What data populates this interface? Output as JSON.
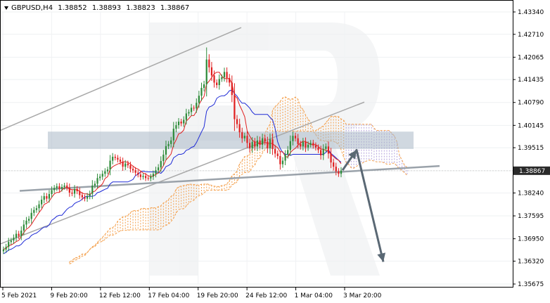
{
  "header": {
    "symbol": "GBPUSD,H4",
    "open": "1.38852",
    "high": "1.38893",
    "low": "1.38823",
    "close": "1.38867"
  },
  "colors": {
    "bull_candle": "#2e8b3a",
    "bear_candle": "#e02020",
    "tenkan": "#e02020",
    "kijun": "#1f2bd6",
    "cloud": "#f4a04c",
    "cloud_future": "#b4a2dc",
    "channel": "#a8a8a8",
    "support": "#9aa2aa",
    "resistance_zone": "#a9b8c6",
    "forecast_arrow": "#5a6874",
    "price_badge": "#2a2a2a"
  },
  "chart_data": {
    "type": "candlestick",
    "indicators": [
      "Ichimoku Kinko Hyo"
    ],
    "ylim": [
      1.35675,
      1.4334
    ],
    "y_ticks": [
      "1.43340",
      "1.42710",
      "1.42065",
      "1.41435",
      "1.40790",
      "1.40145",
      "1.39515",
      "1.38867",
      "1.38240",
      "1.37595",
      "1.36950",
      "1.36320",
      "1.35675"
    ],
    "current_price": "1.38867",
    "x_ticks": [
      "5 Feb 2021",
      "9 Feb 20:00",
      "12 Feb 12:00",
      "17 Feb 04:00",
      "19 Feb 20:00",
      "24 Feb 12:00",
      "1 Mar 04:00",
      "3 Mar 20:00"
    ],
    "candles_close": [
      1.3665,
      1.3672,
      1.3686,
      1.369,
      1.3698,
      1.3709,
      1.3703,
      1.3718,
      1.3735,
      1.3746,
      1.3751,
      1.3768,
      1.3776,
      1.3781,
      1.3792,
      1.3805,
      1.3815,
      1.3808,
      1.3821,
      1.3832,
      1.3838,
      1.3843,
      1.3836,
      1.3841,
      1.3845,
      1.3839,
      1.3825,
      1.3822,
      1.3835,
      1.3829,
      1.3818,
      1.3812,
      1.3808,
      1.3815,
      1.3822,
      1.3845,
      1.385,
      1.3866,
      1.387,
      1.3878,
      1.3885,
      1.389,
      1.3915,
      1.3926,
      1.3923,
      1.3918,
      1.3912,
      1.3898,
      1.3907,
      1.3902,
      1.3892,
      1.3888,
      1.3881,
      1.3876,
      1.3869,
      1.3872,
      1.3866,
      1.3865,
      1.387,
      1.3878,
      1.3888,
      1.3896,
      1.3914,
      1.3932,
      1.3956,
      1.3962,
      1.3972,
      1.4005,
      1.4015,
      1.4025,
      1.402,
      1.403,
      1.4048,
      1.4052,
      1.4064,
      1.4062,
      1.4078,
      1.4098,
      1.412,
      1.413,
      1.42,
      1.4178,
      1.4155,
      1.4135,
      1.4128,
      1.4145,
      1.415,
      1.4165,
      1.4148,
      1.4135,
      1.41,
      1.4032,
      1.4018,
      1.3995,
      1.3978,
      1.3985,
      1.3965,
      1.395,
      1.3968,
      1.3955,
      1.3972,
      1.396,
      1.3978,
      1.3969,
      1.395,
      1.3975,
      1.3948,
      1.3935,
      1.3928,
      1.3905,
      1.3915,
      1.3932,
      1.3945,
      1.397,
      1.3985,
      1.3978,
      1.3962,
      1.3955,
      1.3968,
      1.3952,
      1.396,
      1.3965,
      1.3958,
      1.3952,
      1.3945,
      1.393,
      1.3948,
      1.3955,
      1.3935,
      1.391,
      1.3898,
      1.3885,
      1.3878,
      1.3887
    ],
    "channel_upper": [
      [
        1.4,
        1.429
      ]
    ],
    "channel_lower": [
      [
        1.368,
        1.408
      ]
    ],
    "support_line": [
      [
        1.383,
        1.39
      ]
    ],
    "resistance_zone": [
      1.396,
      1.3985
    ],
    "forecast_path": [
      1.3888,
      1.3945,
      1.363
    ]
  }
}
